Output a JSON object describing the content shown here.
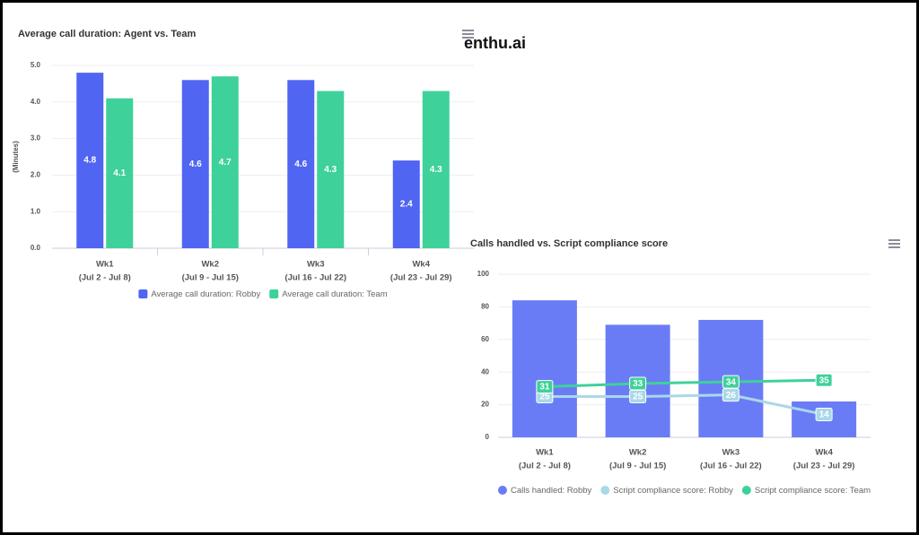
{
  "brand": "enthu.ai",
  "chart_data": [
    {
      "type": "bar",
      "title": "Average call duration: Agent vs. Team",
      "y_label": "(Minutes)",
      "categories": [
        "Wk1",
        "Wk2",
        "Wk3",
        "Wk4"
      ],
      "category_sublabels": [
        "(Jul 2 - Jul 8)",
        "(Jul 9 - Jul 15)",
        "(Jul 16 - Jul 22)",
        "(Jul 23 - Jul 29)"
      ],
      "ylim": [
        0,
        5
      ],
      "yticks": [
        {
          "value": 0,
          "label": "0.0"
        },
        {
          "value": 1,
          "label": "1.0"
        },
        {
          "value": 2,
          "label": "2.0"
        },
        {
          "value": 3,
          "label": "3.0"
        },
        {
          "value": 4,
          "label": "4.0"
        },
        {
          "value": 5,
          "label": "5.0"
        }
      ],
      "grid": true,
      "legend": "bottom",
      "series": [
        {
          "name": "Average call duration: Robby",
          "color": "#5065f2",
          "type": "bar",
          "values": [
            4.8,
            4.6,
            4.6,
            2.4
          ],
          "labels": true
        },
        {
          "name": "Average call duration: Team",
          "color": "#3fd19a",
          "type": "bar",
          "values": [
            4.1,
            4.7,
            4.3,
            4.3
          ],
          "labels": true
        }
      ]
    },
    {
      "type": "combo",
      "title": "Calls handled vs. Script compliance score",
      "categories": [
        "Wk1",
        "Wk2",
        "Wk3",
        "Wk4"
      ],
      "category_sublabels": [
        "(Jul 2 - Jul 8)",
        "(Jul 9 - Jul 15)",
        "(Jul 16 - Jul 22)",
        "(Jul 23 - Jul 29)"
      ],
      "ylim": [
        0,
        100
      ],
      "yticks": [
        0,
        20,
        40,
        60,
        80,
        100
      ],
      "grid": true,
      "legend": "bottom",
      "series": [
        {
          "name": "Calls handled: Robby",
          "color": "#6a7cf5",
          "type": "bar",
          "values": [
            84,
            69,
            72,
            22
          ],
          "labels": false
        },
        {
          "name": "Script compliance score: Robby",
          "color": "#a9d8e8",
          "type": "line",
          "values": [
            25,
            25,
            26,
            14
          ],
          "labels": true
        },
        {
          "name": "Script compliance score: Team",
          "color": "#3fd19a",
          "type": "line",
          "values": [
            31,
            33,
            34,
            35
          ],
          "labels": true
        }
      ]
    }
  ]
}
